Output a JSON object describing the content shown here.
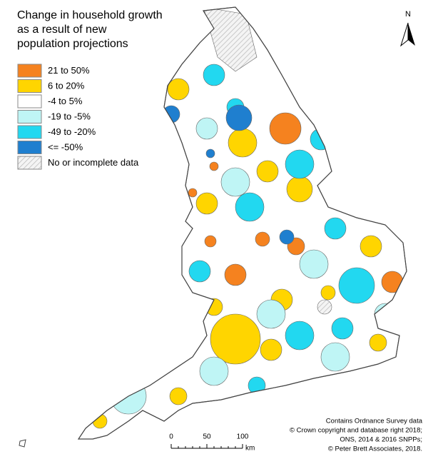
{
  "title_lines": [
    "Change in household growth",
    "as a result of new",
    "population projections"
  ],
  "legend": [
    {
      "label": "21 to 50%",
      "color": "#f5821f"
    },
    {
      "label": "6 to 20%",
      "color": "#ffd500"
    },
    {
      "label": "-4 to 5%",
      "color": "#ffffff"
    },
    {
      "label": "-19 to -5%",
      "color": "#bff5f5"
    },
    {
      "label": "-49 to -20%",
      "color": "#22d8f0"
    },
    {
      "label": "<= -50%",
      "color": "#1f7fcf"
    },
    {
      "label": "No or incomplete data"
    }
  ],
  "north": "N",
  "scale": {
    "ticks": [
      "0",
      "50",
      "100"
    ],
    "unit": "km"
  },
  "credits": [
    "Contains Ordnance Survey data",
    "© Crown copyright and database right 2018;",
    "ONS, 2014 & 2016 SNPPs;",
    "© Peter Brett Associates, 2018."
  ]
}
